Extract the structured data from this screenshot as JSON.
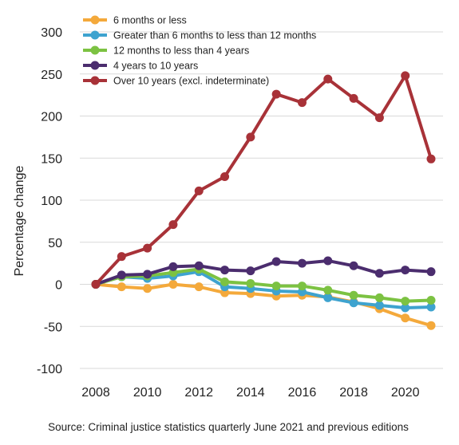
{
  "chart_data": {
    "type": "line",
    "x": [
      2008,
      2009,
      2010,
      2011,
      2012,
      2013,
      2014,
      2015,
      2016,
      2017,
      2018,
      2019,
      2020,
      2021
    ],
    "series": [
      {
        "name": "6 months or less",
        "color": "#f4a93b",
        "values": [
          0,
          -3,
          -5,
          0,
          -3,
          -10,
          -11,
          -14,
          -13,
          -15,
          -21,
          -29,
          -40,
          -49
        ]
      },
      {
        "name": "Greater than 6 months to less than 12 months",
        "color": "#3ea3cf",
        "values": [
          0,
          9,
          7,
          10,
          15,
          -3,
          -5,
          -8,
          -9,
          -16,
          -22,
          -25,
          -28,
          -27
        ]
      },
      {
        "name": "12 months to less than 4 years",
        "color": "#7cc242",
        "values": [
          0,
          9,
          10,
          14,
          18,
          3,
          1,
          -2,
          -2,
          -7,
          -13,
          -16,
          -20,
          -19
        ]
      },
      {
        "name": "4 years to 10 years",
        "color": "#4b2d6e",
        "values": [
          0,
          11,
          12,
          21,
          22,
          17,
          16,
          27,
          25,
          28,
          22,
          13,
          17,
          15
        ]
      },
      {
        "name": "Over 10 years (excl. indeterminate)",
        "color": "#a83238",
        "values": [
          0,
          33,
          43,
          71,
          111,
          128,
          175,
          226,
          216,
          244,
          221,
          198,
          248,
          149
        ]
      }
    ],
    "ylabel": "Percentage change",
    "xlabel": "",
    "ylim": [
      -100,
      300
    ],
    "yticks": [
      -100,
      -50,
      0,
      50,
      100,
      150,
      200,
      250,
      300
    ],
    "xticks": [
      2008,
      2010,
      2012,
      2014,
      2016,
      2018,
      2020
    ],
    "grid": true,
    "legend_position": "top-left"
  },
  "source": "Source: Criminal justice statistics quarterly June 2021 and previous editions"
}
